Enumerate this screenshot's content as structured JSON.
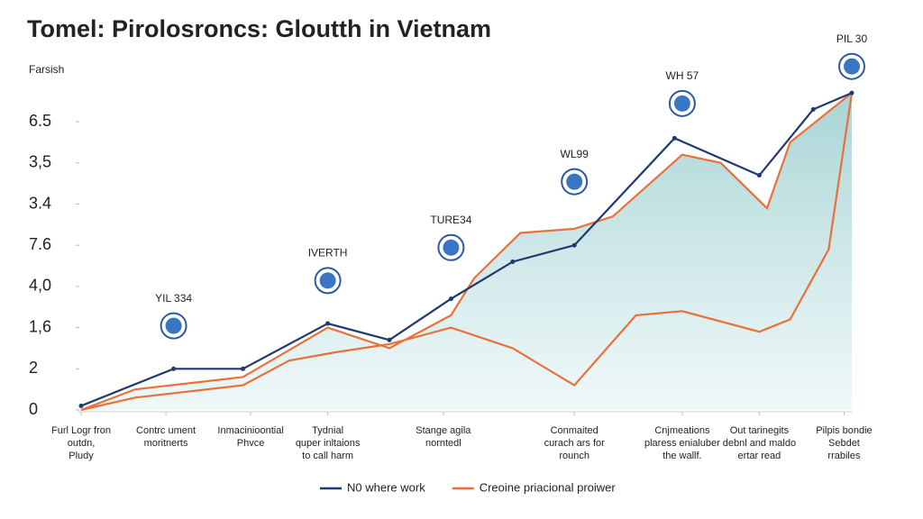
{
  "chart_data": {
    "type": "line",
    "title": "Tomel: Pirolosroncs: Gloutth in Vietnam",
    "ylabel": "Farsish",
    "xlim": [
      0,
      100
    ],
    "ylim": [
      0,
      7.8
    ],
    "xticks": [
      {
        "value": 0,
        "label": "Furl Logr fron\noutdn,\nPludy"
      },
      {
        "value": 11,
        "label": "Contrc ument\nmoritnerts"
      },
      {
        "value": 22,
        "label": "Inmacinioontial\nPhvce"
      },
      {
        "value": 32,
        "label": "Tydnial\nquper inltaions\nto call harm"
      },
      {
        "value": 47,
        "label": "Stange agila\nnorntedl"
      },
      {
        "value": 64,
        "label": "Conmaited\ncurach ars for\nrounch"
      },
      {
        "value": 78,
        "label": "Cnjmeations\nplaress enialuber\nthe wallf."
      },
      {
        "value": 88,
        "label": "Out tarinegits\ndebnl and maldo\nertar read"
      },
      {
        "value": 99,
        "label": "Pilpis bondie\nSebdet\nrrabiles"
      }
    ],
    "yticks": [
      0,
      {
        "value": 1,
        "label": "2"
      },
      {
        "value": 2,
        "label": "1,6"
      },
      {
        "value": 3,
        "label": "4,0"
      },
      {
        "value": 4,
        "label": "7.6"
      },
      {
        "value": 5,
        "label": "3.4"
      },
      {
        "value": 6,
        "label": "3,5"
      },
      {
        "value": 7,
        "label": "6.5"
      }
    ],
    "series": [
      {
        "color": "#e8713a",
        "area": true,
        "x": [
          0,
          7,
          21,
          32,
          40,
          48,
          51,
          57,
          64,
          69,
          78,
          83,
          89,
          92,
          100
        ],
        "values": [
          0,
          0.5,
          0.8,
          2.0,
          1.5,
          2.3,
          3.2,
          4.3,
          4.4,
          4.7,
          6.2,
          6.0,
          4.9,
          6.5,
          7.7
        ]
      },
      {
        "color": "#e8713a",
        "x": [
          0,
          7,
          21,
          27,
          33,
          40,
          48,
          56,
          64,
          72,
          78,
          88,
          92,
          97,
          100
        ],
        "values": [
          0,
          0.3,
          0.6,
          1.2,
          1.4,
          1.6,
          2.0,
          1.5,
          0.6,
          2.3,
          2.4,
          1.9,
          2.2,
          3.9,
          7.7
        ]
      },
      {
        "name": "N0 where work",
        "color": "#1f3a6e",
        "x": [
          0,
          12,
          21,
          32,
          40,
          48,
          56,
          64,
          77,
          88,
          95,
          100
        ],
        "values": [
          0.1,
          1.0,
          1.0,
          2.1,
          1.7,
          2.7,
          3.6,
          4.0,
          6.6,
          5.7,
          7.3,
          7.7
        ]
      },
      {
        "name": "Creoine priacional proiwer",
        "color": "#e8713a",
        "legend_only": true
      }
    ],
    "annotations": [
      {
        "text": "YIL 334",
        "x": 12,
        "y": 2.7
      },
      {
        "text": "IVERTH",
        "x": 32,
        "y": 3.8
      },
      {
        "text": "TURE34",
        "x": 48,
        "y": 4.6
      },
      {
        "text": "WL99",
        "x": 64,
        "y": 6.2
      },
      {
        "text": "WH 57",
        "x": 78,
        "y": 8.1
      },
      {
        "text": "PIL 30",
        "x": 100,
        "y": 9.0
      }
    ]
  }
}
